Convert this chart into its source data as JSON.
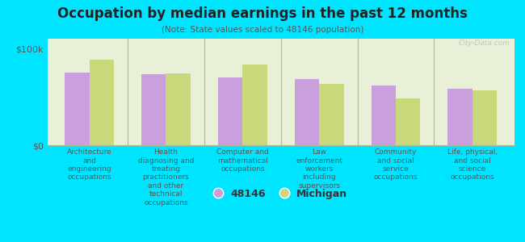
{
  "title": "Occupation by median earnings in the past 12 months",
  "subtitle": "(Note: State values scaled to 48146 population)",
  "background_color": "#00e5ff",
  "plot_bg_color": "#e8f0d8",
  "categories": [
    "Architecture\nand\nengineering\noccupations",
    "Health\ndiagnosing and\ntreating\npractitioners\nand other\ntechnical\noccupations",
    "Computer and\nmathematical\noccupations",
    "Law\nenforcement\nworkers\nincluding\nsupervisors",
    "Community\nand social\nservice\noccupations",
    "Life, physical,\nand social\nscience\noccupations"
  ],
  "values_48146": [
    75000,
    73000,
    70000,
    68000,
    62000,
    58000
  ],
  "values_michigan": [
    88000,
    74000,
    83000,
    63000,
    48000,
    57000
  ],
  "color_48146": "#c9a0dc",
  "color_michigan": "#c8d87a",
  "ylim": [
    0,
    110000
  ],
  "ytick_labels": [
    "$0",
    "$100k"
  ],
  "ytick_vals": [
    0,
    100000
  ],
  "legend_48146": "48146",
  "legend_michigan": "Michigan",
  "watermark": "City-Data.com",
  "bar_width": 0.32,
  "separator_color": "#b0b8a0",
  "spine_color": "#b0b8a0"
}
